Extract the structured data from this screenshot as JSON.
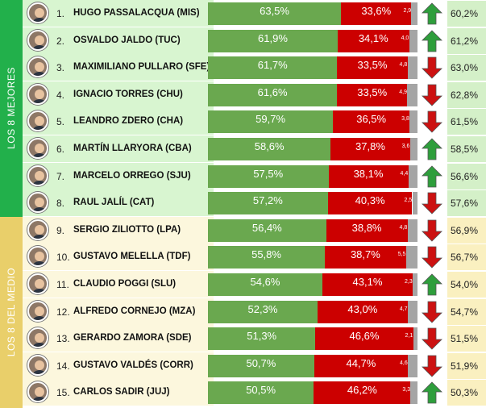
{
  "groups": [
    {
      "label": "LOS 8 MEJORES",
      "color": "#22b04b",
      "rowStart": 0,
      "rowEnd": 7,
      "rowBg": "#d8f5d0",
      "changeBg": "#d4f0c8"
    },
    {
      "label": "LOS 8 DEL MEDIO",
      "color": "#e9cf6a",
      "rowStart": 8,
      "rowEnd": 14,
      "rowBg": "#fcf7dd",
      "changeBg": "#faf0c0"
    }
  ],
  "colors": {
    "approve": "#6aa84f",
    "disapprove": "#cc0000",
    "other": "#a5a5a5",
    "up": "#2e9e3c",
    "down": "#cc1111"
  },
  "chart_data": {
    "type": "bar",
    "stacked": true,
    "orientation": "horizontal",
    "categories": [
      "HUGO PASSALACQUA (MIS)",
      "OSVALDO JALDO (TUC)",
      "MAXIMILIANO PULLARO (SFE)",
      "IGNACIO TORRES (CHU)",
      "LEANDRO ZDERO (CHA)",
      "MARTÍN LLARYORA (CBA)",
      "MARCELO ORREGO (SJU)",
      "RAUL JALÍL (CAT)",
      "SERGIO ZILIOTTO (LPA)",
      "GUSTAVO MELELLA (TDF)",
      "CLAUDIO POGGI (SLU)",
      "ALFREDO CORNEJO (MZA)",
      "GERARDO ZAMORA (SDE)",
      "GUSTAVO VALDÉS (CORR)",
      "CARLOS SADIR (JUJ)"
    ],
    "ranks": [
      "1.",
      "2.",
      "3.",
      "4.",
      "5.",
      "6.",
      "7.",
      "8.",
      "9.",
      "10.",
      "11.",
      "12.",
      "13.",
      "14.",
      "15."
    ],
    "series": [
      {
        "values": [
          63.5,
          61.9,
          61.7,
          61.6,
          59.7,
          58.6,
          57.5,
          57.2,
          56.4,
          55.8,
          54.6,
          52.3,
          51.3,
          50.7,
          50.5
        ],
        "labels": [
          "63,5%",
          "61,9%",
          "61,7%",
          "61,6%",
          "59,7%",
          "58,6%",
          "57,5%",
          "57,2%",
          "56,4%",
          "55,8%",
          "54,6%",
          "52,3%",
          "51,3%",
          "50,7%",
          "50,5%"
        ]
      },
      {
        "values": [
          33.6,
          34.1,
          33.5,
          33.5,
          36.5,
          37.8,
          38.1,
          40.3,
          38.8,
          38.7,
          43.1,
          43.0,
          46.6,
          44.7,
          46.2
        ],
        "labels": [
          "33,6%",
          "34,1%",
          "33,5%",
          "33,5%",
          "36,5%",
          "37,8%",
          "38,1%",
          "40,3%",
          "38,8%",
          "38,7%",
          "43,1%",
          "43,0%",
          "46,6%",
          "44,7%",
          "46,2%"
        ]
      },
      {
        "values": [
          2.9,
          4.0,
          4.8,
          4.9,
          3.8,
          3.6,
          4.4,
          2.5,
          4.8,
          5.5,
          2.3,
          4.7,
          2.1,
          4.6,
          3.3
        ],
        "labels": [
          "2,9",
          "4,0",
          "4,8",
          "4,9",
          "3,8",
          "3,6",
          "4,4",
          "2,5",
          "4,8",
          "5,5",
          "2,3",
          "4,7",
          "2,1",
          "4,6",
          "3,3"
        ]
      }
    ],
    "trend": [
      "up",
      "up",
      "down",
      "down",
      "down",
      "up",
      "up",
      "down",
      "down",
      "down",
      "up",
      "down",
      "down",
      "down",
      "up"
    ],
    "previous": [
      60.2,
      61.2,
      63.0,
      62.8,
      61.5,
      58.5,
      56.6,
      57.6,
      56.9,
      56.7,
      54.0,
      54.7,
      51.5,
      51.9,
      50.3
    ],
    "previous_labels": [
      "60,2%",
      "61,2%",
      "63,0%",
      "62,8%",
      "61,5%",
      "58,5%",
      "56,6%",
      "57,6%",
      "56,9%",
      "56,7%",
      "54,0%",
      "54,7%",
      "51,5%",
      "51,9%",
      "50,3%"
    ],
    "xlim": [
      0,
      100
    ]
  }
}
